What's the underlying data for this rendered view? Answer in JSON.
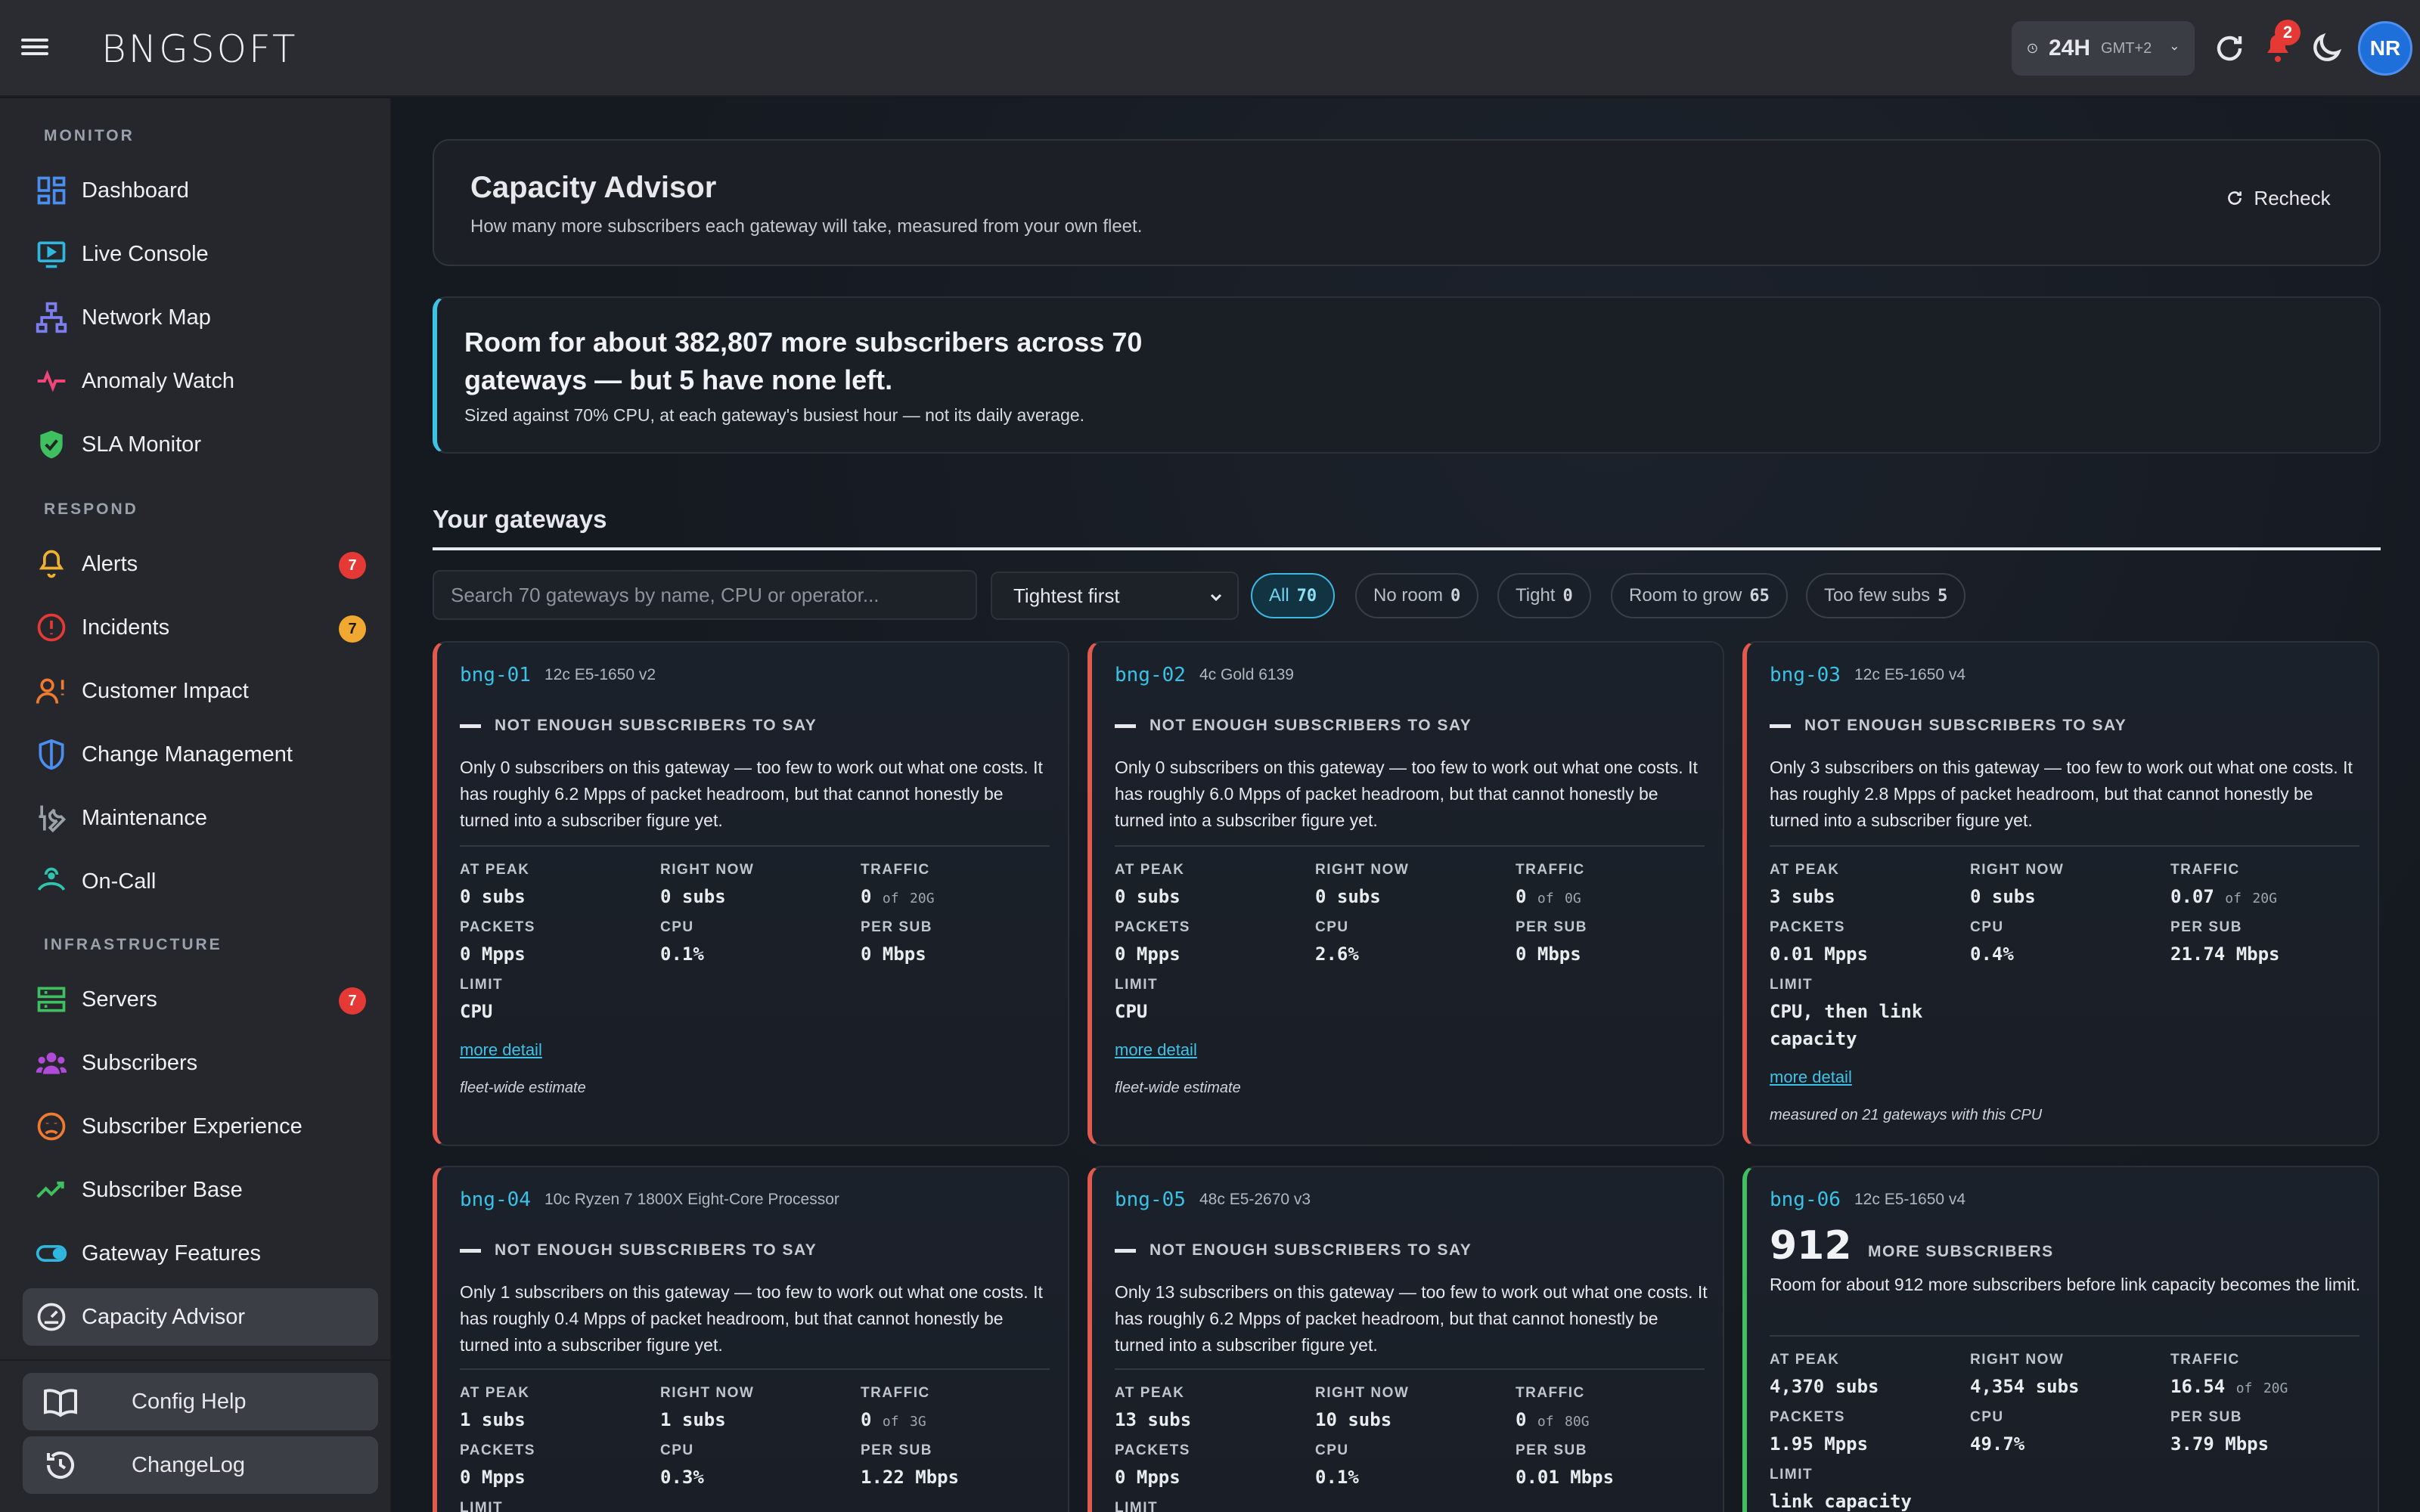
{
  "brand": {
    "logo": "BNGSOFT"
  },
  "topbar": {
    "time_range": "24H",
    "timezone": "GMT+2",
    "notifications": "2",
    "avatar": "NR"
  },
  "sidebar": {
    "sections": {
      "monitor": "MONITOR",
      "respond": "RESPOND",
      "infrastructure": "INFRASTRUCTURE"
    },
    "monitor": [
      {
        "label": "Dashboard",
        "icon": "dashboard-icon"
      },
      {
        "label": "Live Console",
        "icon": "monitor-play-icon"
      },
      {
        "label": "Network Map",
        "icon": "network-icon"
      },
      {
        "label": "Anomaly Watch",
        "icon": "pulse-icon"
      },
      {
        "label": "SLA Monitor",
        "icon": "shield-check-icon"
      }
    ],
    "respond": [
      {
        "label": "Alerts",
        "icon": "bell-icon",
        "badge": "7"
      },
      {
        "label": "Incidents",
        "icon": "alert-circle-icon",
        "badge": "7"
      },
      {
        "label": "Customer Impact",
        "icon": "user-alert-icon"
      },
      {
        "label": "Change Management",
        "icon": "shield-half-icon"
      },
      {
        "label": "Maintenance",
        "icon": "wrench-icon"
      },
      {
        "label": "On-Call",
        "icon": "headset-icon"
      }
    ],
    "infrastructure": [
      {
        "label": "Servers",
        "icon": "server-icon",
        "badge": "7"
      },
      {
        "label": "Subscribers",
        "icon": "users-icon"
      },
      {
        "label": "Subscriber Experience",
        "icon": "frown-icon"
      },
      {
        "label": "Subscriber Base",
        "icon": "trend-icon"
      },
      {
        "label": "Gateway Features",
        "icon": "toggle-icon"
      },
      {
        "label": "Capacity Advisor",
        "icon": "gauge-icon"
      }
    ],
    "bottom": [
      {
        "label": "Config Help",
        "icon": "book-icon"
      },
      {
        "label": "ChangeLog",
        "icon": "history-icon"
      }
    ]
  },
  "colors": {
    "accent": "#3cc4e6",
    "danger": "#e25a4e",
    "ok": "#3fbf5f",
    "badge_red": "#e53935",
    "badge_orange": "#f0a830"
  },
  "page": {
    "title": "Capacity Advisor",
    "subtitle": "How many more subscribers each gateway will take, measured from your own fleet.",
    "recheck": "Recheck"
  },
  "summary": {
    "headline": "Room for about 382,807 more subscribers across 70 gateways — but 5 have none left.",
    "sub": "Sized against 70% CPU, at each gateway's busiest hour — not its daily average."
  },
  "gateways": {
    "title": "Your gateways",
    "search_placeholder": "Search 70 gateways by name, CPU or operator...",
    "sort": "Tightest first",
    "filters": [
      {
        "label": "All",
        "count": "70"
      },
      {
        "label": "No room",
        "count": "0"
      },
      {
        "label": "Tight",
        "count": "0"
      },
      {
        "label": "Room to grow",
        "count": "65"
      },
      {
        "label": "Too few subs",
        "count": "5"
      }
    ]
  },
  "labels": {
    "at_peak": "AT PEAK",
    "right_now": "RIGHT NOW",
    "traffic": "TRAFFIC",
    "packets": "PACKETS",
    "cpu": "CPU",
    "per_sub": "PER SUB",
    "limit": "LIMIT",
    "more_detail": "more detail",
    "not_enough": "NOT ENOUGH SUBSCRIBERS TO SAY",
    "more_subs": "MORE SUBSCRIBERS",
    "of": "of"
  },
  "cards": [
    {
      "name": "bng-01",
      "cpu_model": "12c E5-1650 v2",
      "desc": "Only 0 subscribers on this gateway — too few to work out what one costs. It has roughly 6.2 Mpps of packet headroom, but that cannot honestly be turned into a subscriber figure yet.",
      "at_peak": "0 subs",
      "right_now": "0 subs",
      "traffic": "0",
      "traffic_cap": "20G",
      "packets": "0 Mpps",
      "cpu": "0.1%",
      "per_sub": "0 Mbps",
      "limit": "CPU",
      "note": "fleet-wide estimate"
    },
    {
      "name": "bng-02",
      "cpu_model": "4c Gold 6139",
      "desc": "Only 0 subscribers on this gateway — too few to work out what one costs. It has roughly 6.0 Mpps of packet headroom, but that cannot honestly be turned into a subscriber figure yet.",
      "at_peak": "0 subs",
      "right_now": "0 subs",
      "traffic": "0",
      "traffic_cap": "0G",
      "packets": "0 Mpps",
      "cpu": "2.6%",
      "per_sub": "0 Mbps",
      "limit": "CPU",
      "note": "fleet-wide estimate"
    },
    {
      "name": "bng-03",
      "cpu_model": "12c E5-1650 v4",
      "desc": "Only 3 subscribers on this gateway — too few to work out what one costs. It has roughly 2.8 Mpps of packet headroom, but that cannot honestly be turned into a subscriber figure yet.",
      "at_peak": "3 subs",
      "right_now": "0 subs",
      "traffic": "0.07",
      "traffic_cap": "20G",
      "packets": "0.01 Mpps",
      "cpu": "0.4%",
      "per_sub": "21.74 Mbps",
      "limit": "CPU, then link capacity",
      "note": "measured on 21 gateways with this CPU"
    },
    {
      "name": "bng-04",
      "cpu_model": "10c Ryzen 7 1800X Eight-Core Processor",
      "desc": "Only 1 subscribers on this gateway — too few to work out what one costs. It has roughly 0.4 Mpps of packet headroom, but that cannot honestly be turned into a subscriber figure yet.",
      "at_peak": "1 subs",
      "right_now": "1 subs",
      "traffic": "0",
      "traffic_cap": "3G",
      "packets": "0 Mpps",
      "cpu": "0.3%",
      "per_sub": "1.22 Mbps",
      "limit": "",
      "note": ""
    },
    {
      "name": "bng-05",
      "cpu_model": "48c E5-2670 v3",
      "desc": "Only 13 subscribers on this gateway — too few to work out what one costs. It has roughly 6.2 Mpps of packet headroom, but that cannot honestly be turned into a subscriber figure yet.",
      "at_peak": "13 subs",
      "right_now": "10 subs",
      "traffic": "0",
      "traffic_cap": "80G",
      "packets": "0 Mpps",
      "cpu": "0.1%",
      "per_sub": "0.01 Mbps",
      "limit": "",
      "note": ""
    },
    {
      "name": "bng-06",
      "cpu_model": "12c E5-1650 v4",
      "room": "912",
      "desc": "Room for about 912 more subscribers before link capacity becomes the limit.",
      "at_peak": "4,370 subs",
      "right_now": "4,354 subs",
      "traffic": "16.54",
      "traffic_cap": "20G",
      "packets": "1.95 Mpps",
      "cpu": "49.7%",
      "per_sub": "3.79 Mbps",
      "limit": "link capacity",
      "note": ""
    }
  ]
}
